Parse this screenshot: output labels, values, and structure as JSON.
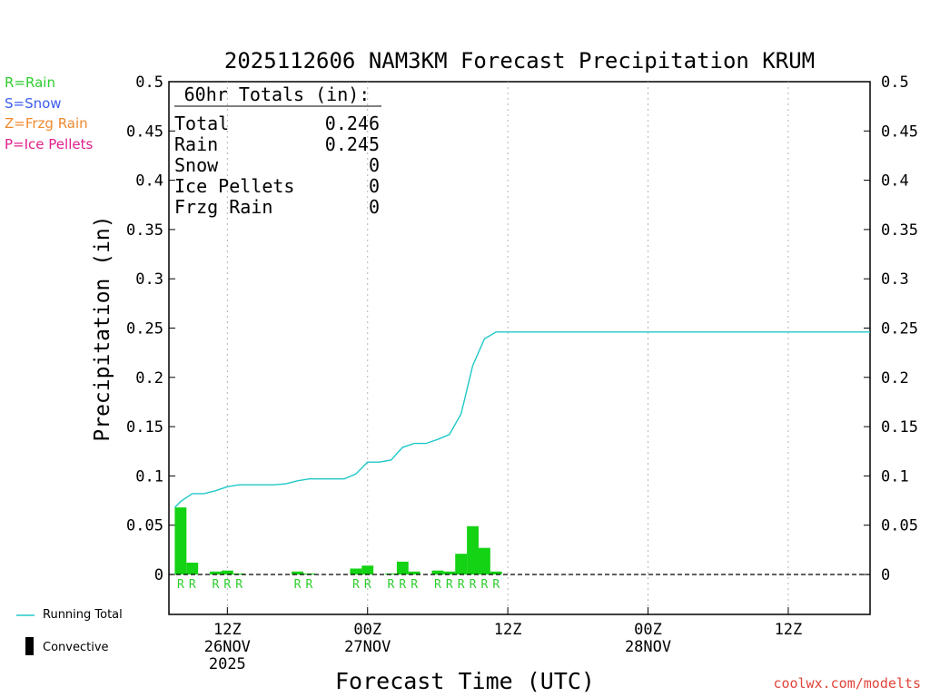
{
  "title": "2025112606 NAM3KM Forecast Precipitation KRUM",
  "legend": [
    {
      "label": "R=Rain",
      "color": "#2ecc2e"
    },
    {
      "label": "S=Snow",
      "color": "#3c5cf0"
    },
    {
      "label": "Z=Frzg Rain",
      "color": "#f08a30"
    },
    {
      "label": "P=Ice Pellets",
      "color": "#e0208c"
    }
  ],
  "bottom_legend": {
    "running_total": "Running Total",
    "convective": "Convective"
  },
  "credit": "coolwx.com/modelts",
  "totals": {
    "header": "60hr Totals (in):",
    "rows": [
      {
        "label": "Total",
        "value": "0.246"
      },
      {
        "label": "Rain",
        "value": "0.245"
      },
      {
        "label": "Snow",
        "value": "0"
      },
      {
        "label": "Ice Pellets",
        "value": "0"
      },
      {
        "label": "Frzg Rain",
        "value": "0"
      }
    ]
  },
  "colors": {
    "bars": "#14d214",
    "running_total": "#20c8c8",
    "rain_letter": "#2ecc2e",
    "grid": "#b4b4b4"
  },
  "chart_data": {
    "type": "bar",
    "ylabel": "Precipitation (in)",
    "xlabel": "Forecast Time (UTC)",
    "ylim": [
      -0.04,
      0.5
    ],
    "yticks": [
      "0",
      "0.05",
      "0.1",
      "0.15",
      "0.2",
      "0.25",
      "0.3",
      "0.35",
      "0.4",
      "0.45",
      "0.5"
    ],
    "xlim_hours": [
      7,
      67
    ],
    "xticks": [
      {
        "hour": 12,
        "lines": [
          "12Z",
          "26NOV",
          "2025"
        ]
      },
      {
        "hour": 24,
        "lines": [
          "00Z",
          "27NOV"
        ]
      },
      {
        "hour": 36,
        "lines": [
          "12Z"
        ]
      },
      {
        "hour": 48,
        "lines": [
          "00Z",
          "28NOV"
        ]
      },
      {
        "hour": 60,
        "lines": [
          "12Z"
        ]
      }
    ],
    "hourly_precip": [
      {
        "hour": 8,
        "value": 0.068,
        "type": "R"
      },
      {
        "hour": 9,
        "value": 0.012,
        "type": "R"
      },
      {
        "hour": 10,
        "value": 0.0,
        "type": ""
      },
      {
        "hour": 11,
        "value": 0.003,
        "type": "R"
      },
      {
        "hour": 12,
        "value": 0.004,
        "type": "R"
      },
      {
        "hour": 13,
        "value": 0.001,
        "type": "R"
      },
      {
        "hour": 18,
        "value": 0.003,
        "type": "R"
      },
      {
        "hour": 19,
        "value": 0.001,
        "type": "R"
      },
      {
        "hour": 23,
        "value": 0.006,
        "type": "R"
      },
      {
        "hour": 24,
        "value": 0.009,
        "type": "R"
      },
      {
        "hour": 26,
        "value": 0.001,
        "type": "R"
      },
      {
        "hour": 27,
        "value": 0.013,
        "type": "R"
      },
      {
        "hour": 28,
        "value": 0.003,
        "type": "R"
      },
      {
        "hour": 30,
        "value": 0.004,
        "type": "R"
      },
      {
        "hour": 31,
        "value": 0.003,
        "type": "R"
      },
      {
        "hour": 32,
        "value": 0.021,
        "type": "R"
      },
      {
        "hour": 33,
        "value": 0.049,
        "type": "R"
      },
      {
        "hour": 34,
        "value": 0.027,
        "type": "R"
      },
      {
        "hour": 35,
        "value": 0.003,
        "type": "R"
      }
    ],
    "running_total": [
      [
        7.5,
        0.068
      ],
      [
        8,
        0.074
      ],
      [
        9,
        0.082
      ],
      [
        10,
        0.082
      ],
      [
        11,
        0.085
      ],
      [
        12,
        0.089
      ],
      [
        13,
        0.091
      ],
      [
        14,
        0.091
      ],
      [
        15,
        0.091
      ],
      [
        16,
        0.091
      ],
      [
        17,
        0.092
      ],
      [
        18,
        0.095
      ],
      [
        19,
        0.097
      ],
      [
        20,
        0.097
      ],
      [
        21,
        0.097
      ],
      [
        22,
        0.097
      ],
      [
        23,
        0.102
      ],
      [
        24,
        0.114
      ],
      [
        25,
        0.114
      ],
      [
        26,
        0.116
      ],
      [
        27,
        0.129
      ],
      [
        28,
        0.133
      ],
      [
        29,
        0.133
      ],
      [
        30,
        0.137
      ],
      [
        31,
        0.142
      ],
      [
        32,
        0.163
      ],
      [
        33,
        0.212
      ],
      [
        34,
        0.239
      ],
      [
        35,
        0.246
      ],
      [
        36,
        0.246
      ],
      [
        67,
        0.246
      ]
    ]
  }
}
